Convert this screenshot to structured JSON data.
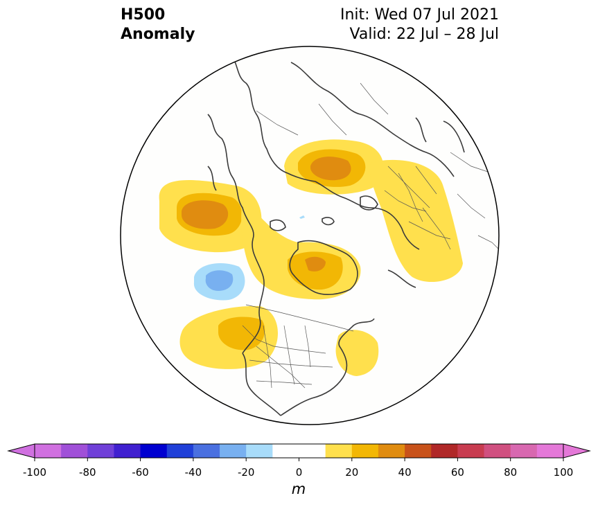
{
  "header": {
    "field_line1": "H500",
    "field_line2": "Anomaly",
    "init_text": "Init: Wed 07 Jul 2021",
    "valid_text": "Valid: 22 Jul – 28 Jul"
  },
  "map": {
    "projection": "north-polar-stereographic",
    "anomaly_regions": [
      {
        "name": "north-pacific-high",
        "level": 40,
        "color": "#e08c10"
      },
      {
        "name": "siberia-high",
        "level": 40,
        "color": "#e08c10"
      },
      {
        "name": "canadian-arctic-high",
        "level": 30,
        "color": "#f2b705"
      },
      {
        "name": "western-us-high",
        "level": 30,
        "color": "#f2b705"
      },
      {
        "name": "east-coast-high",
        "level": 20,
        "color": "#ffe04d"
      },
      {
        "name": "europe-high",
        "level": 20,
        "color": "#ffe04d"
      },
      {
        "name": "gulf-of-alaska-low",
        "level": -30,
        "color": "#78b0f0"
      }
    ]
  },
  "colorbar": {
    "unit": "m",
    "ticks": [
      "-100",
      "-80",
      "-60",
      "-40",
      "-20",
      "0",
      "20",
      "40",
      "60",
      "80",
      "100"
    ],
    "colors": [
      "#d070e0",
      "#a050d8",
      "#7040d8",
      "#4020d0",
      "#0000d0",
      "#2040d8",
      "#4a70e0",
      "#78b0f0",
      "#a8dcfa",
      "#ffffff",
      "#ffffff",
      "#ffe04d",
      "#f2b705",
      "#e08c10",
      "#c8521a",
      "#b02828",
      "#c83c50",
      "#d05080",
      "#d868b0",
      "#e478d8"
    ],
    "extend_low_color": "#d070e0",
    "extend_high_color": "#e478d8"
  }
}
